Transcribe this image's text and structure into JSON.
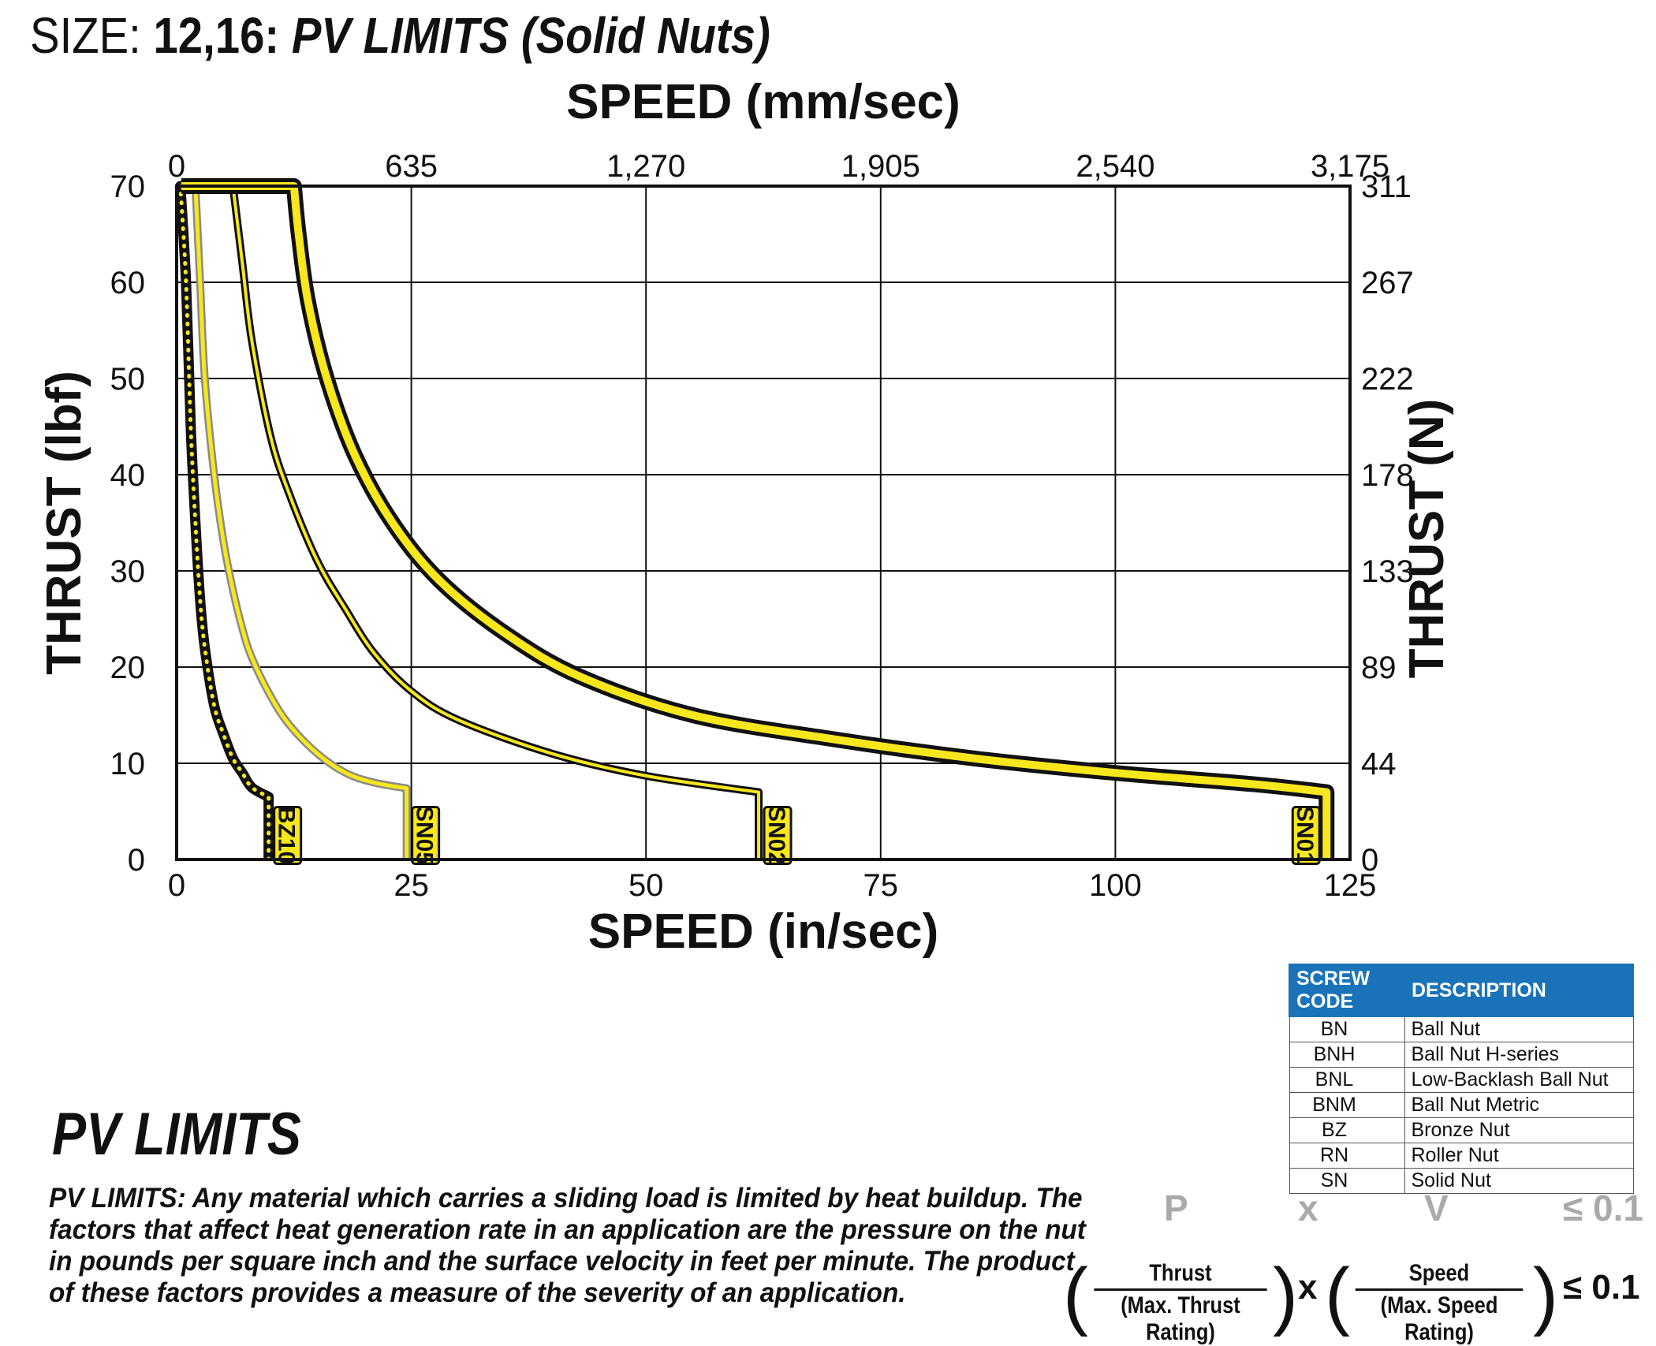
{
  "header": {
    "size_label": "SIZE:",
    "size_codes": "12,16:",
    "title": "PV LIMITS (Solid Nuts)"
  },
  "chart_data": {
    "type": "line",
    "title": "",
    "xlabel": "SPEED (in/sec)",
    "x2label": "SPEED (mm/sec)",
    "ylabel": "THRUST (lbf)",
    "y2label": "THRUST (N)",
    "xlim": [
      0,
      125
    ],
    "ylim": [
      0,
      70
    ],
    "x_ticks": [
      "0",
      "25",
      "50",
      "75",
      "100",
      "125"
    ],
    "x2_ticks": [
      "0",
      "635",
      "1,270",
      "1,905",
      "2,540",
      "3,175"
    ],
    "y_ticks": [
      "0",
      "10",
      "20",
      "30",
      "40",
      "50",
      "60",
      "70"
    ],
    "y2_ticks": [
      "0",
      "44",
      "89",
      "133",
      "178",
      "222",
      "267",
      "311"
    ],
    "grid": true,
    "series": [
      {
        "name": "BZ10",
        "style": "dotted-black",
        "x": [
          0.4,
          1,
          1.5,
          2,
          2.5,
          3,
          4,
          5,
          6,
          7,
          8,
          9.8,
          9.8
        ],
        "y": [
          70,
          60,
          45,
          35,
          27,
          22,
          16,
          13,
          10.5,
          9,
          7.5,
          6.5,
          0
        ]
      },
      {
        "name": "SN05",
        "style": "thin-yellow-gray",
        "x": [
          2,
          2.5,
          3,
          4,
          5,
          6,
          7,
          8,
          10,
          12,
          15,
          18,
          21,
          24.5,
          24.5
        ],
        "y": [
          70,
          60,
          50,
          40,
          33,
          28,
          24,
          21,
          17,
          14,
          11,
          9,
          8,
          7.4,
          0
        ]
      },
      {
        "name": "SN02",
        "style": "medium-yellow-black",
        "x": [
          6,
          7,
          8,
          10,
          12,
          15,
          18,
          21,
          25,
          30,
          40,
          50,
          62,
          62
        ],
        "y": [
          70,
          62,
          54,
          44,
          38,
          31,
          26,
          21.5,
          17.5,
          14.5,
          11,
          8.7,
          7,
          0
        ]
      },
      {
        "name": "SN01",
        "style": "thick-yellow-black",
        "x": [
          12.5,
          13,
          14,
          16,
          19,
          23,
          28,
          35,
          43,
          55,
          70,
          85,
          100,
          115,
          122.5,
          122.5
        ],
        "y": [
          70,
          65,
          58,
          50,
          42,
          35,
          29,
          23.5,
          19,
          15,
          12.5,
          10.5,
          9,
          7.8,
          7,
          0
        ]
      }
    ]
  },
  "pv_section": {
    "heading": "PV LIMITS",
    "text": "PV LIMITS: Any material which carries a sliding load is limited by heat buildup. The factors that affect heat generation rate in an application are the pressure on the nut in pounds per square inch and the surface velocity in feet per minute. The product of these factors provides a measure of the severity of an application."
  },
  "code_table": {
    "headers": [
      "SCREW CODE",
      "DESCRIPTION"
    ],
    "rows": [
      [
        "BN",
        "Ball Nut"
      ],
      [
        "BNH",
        "Ball Nut H-series"
      ],
      [
        "BNL",
        "Low-Backlash Ball Nut"
      ],
      [
        "BNM",
        "Ball Nut Metric"
      ],
      [
        "BZ",
        "Bronze Nut"
      ],
      [
        "RN",
        "Roller Nut"
      ],
      [
        "SN",
        "Solid Nut"
      ]
    ]
  },
  "formula": {
    "p": "P",
    "x": "x",
    "v": "V",
    "limit": "≤ 0.1",
    "thrust_num": "Thrust",
    "thrust_den": "(Max. Thrust Rating)",
    "speed_num": "Speed",
    "speed_den": "(Max. Speed Rating)",
    "times": "x",
    "limit2": "≤ 0.1"
  },
  "colors": {
    "curve_yellow": "#f7e71c",
    "header_blue": "#1a73b8",
    "curve_gray": "#8a8a8a"
  }
}
